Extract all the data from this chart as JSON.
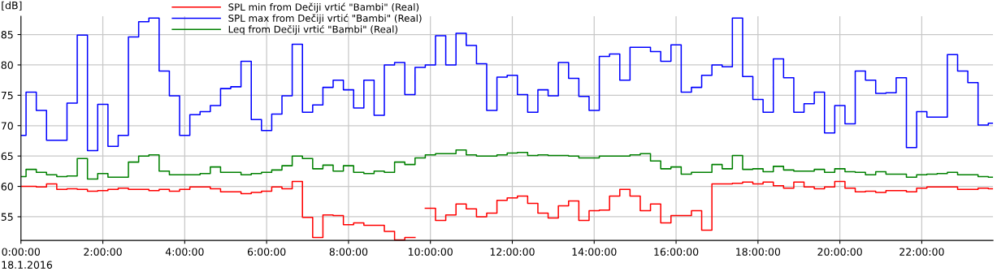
{
  "chart_data": {
    "type": "step",
    "x": [
      0,
      0.125,
      0.375,
      0.625,
      0.875,
      1.125,
      1.375,
      1.625,
      1.875,
      2.125,
      2.375,
      2.625,
      2.875,
      3.125,
      3.375,
      3.625,
      3.875,
      4.125,
      4.375,
      4.625,
      4.875,
      5.125,
      5.375,
      5.625,
      5.875,
      6.125,
      6.375,
      6.625,
      6.875,
      7.125,
      7.375,
      7.625,
      7.875,
      8.125,
      8.375,
      8.625,
      8.875,
      9.125,
      9.375,
      9.625,
      9.875,
      10.125,
      10.375,
      10.625,
      10.875,
      11.125,
      11.375,
      11.625,
      11.875,
      12.125,
      12.375,
      12.625,
      12.875,
      13.125,
      13.375,
      13.625,
      13.875,
      14.125,
      14.375,
      14.625,
      14.875,
      15.125,
      15.375,
      15.625,
      15.875,
      16.125,
      16.375,
      16.625,
      16.875,
      17.125,
      17.375,
      17.625,
      17.875,
      18.125,
      18.375,
      18.625,
      18.875,
      19.125,
      19.375,
      19.625,
      19.875,
      20.125,
      20.375,
      20.625,
      20.875,
      21.125,
      21.375,
      21.625,
      21.875,
      22.125,
      22.375,
      22.625,
      22.875,
      23.125,
      23.375,
      23.625,
      23.74
    ],
    "series": [
      {
        "name": "SPL min from Dečiji vrtić \"Bambi\" (Real)",
        "color": "#ff0000",
        "values": [
          60.0,
          60.0,
          59.9,
          60.4,
          59.5,
          59.6,
          59.5,
          59.2,
          59.3,
          59.5,
          59.7,
          59.5,
          59.5,
          59.3,
          59.5,
          59.2,
          59.5,
          59.9,
          59.9,
          59.6,
          59.1,
          59.1,
          58.8,
          59.0,
          59.2,
          59.9,
          59.6,
          60.8,
          54.9,
          51.6,
          55.3,
          55.2,
          53.7,
          54.0,
          53.6,
          53.6,
          52.6,
          51.2,
          51.6,
          null,
          56.4,
          54.4,
          55.3,
          57.1,
          56.3,
          55.0,
          55.6,
          57.7,
          58.1,
          58.4,
          57.2,
          55.6,
          54.8,
          56.8,
          57.6,
          54.4,
          56.0,
          56.1,
          58.4,
          59.5,
          58.4,
          56.0,
          57.1,
          54.0,
          55.2,
          55.2,
          56.0,
          52.8,
          60.4,
          60.4,
          60.5,
          60.7,
          60.4,
          60.7,
          60.1,
          59.7,
          60.7,
          59.9,
          59.6,
          59.9,
          60.8,
          59.7,
          59.1,
          59.2,
          59.0,
          59.3,
          59.3,
          59.1,
          59.7,
          59.9,
          59.9,
          59.9,
          59.5,
          59.5,
          59.7,
          59.6,
          59.6
        ]
      },
      {
        "name": "SPL max from Dečiji vrtić \"Bambi\" (Real)",
        "color": "#0000ff",
        "values": [
          68.4,
          75.5,
          72.5,
          67.6,
          67.6,
          73.7,
          84.9,
          65.9,
          73.5,
          66.6,
          68.4,
          84.6,
          87.1,
          87.7,
          79.0,
          74.9,
          68.4,
          71.8,
          72.3,
          73.3,
          76.1,
          76.4,
          80.6,
          71.0,
          69.2,
          71.9,
          74.9,
          83.4,
          72.2,
          73.4,
          76.3,
          77.5,
          75.9,
          72.9,
          77.5,
          71.7,
          80.0,
          80.4,
          75.1,
          79.6,
          80.0,
          84.8,
          80.0,
          85.2,
          83.2,
          80.2,
          72.5,
          78.0,
          78.3,
          75.1,
          72.2,
          75.9,
          74.9,
          80.4,
          77.8,
          74.8,
          72.5,
          81.4,
          81.8,
          77.5,
          82.9,
          82.9,
          82.2,
          80.6,
          83.3,
          75.5,
          76.3,
          78.3,
          80.0,
          79.7,
          87.7,
          78.1,
          74.3,
          72.2,
          81.0,
          77.9,
          72.2,
          73.6,
          75.5,
          68.8,
          73.3,
          70.3,
          79.0,
          77.5,
          75.3,
          75.4,
          77.9,
          66.4,
          72.3,
          71.4,
          71.4,
          81.7,
          79.0,
          77.1,
          70.1,
          70.4,
          70.4
        ]
      },
      {
        "name": "Leq from Dečiji vrtić \"Bambi\" (Real)",
        "color": "#008000",
        "values": [
          61.6,
          62.8,
          62.3,
          61.9,
          61.6,
          61.7,
          64.6,
          61.2,
          62.1,
          61.5,
          61.5,
          64.0,
          65.0,
          65.2,
          62.5,
          61.9,
          61.9,
          61.9,
          62.1,
          63.2,
          62.3,
          62.3,
          61.9,
          62.1,
          62.3,
          62.7,
          63.4,
          65.0,
          64.6,
          62.9,
          63.5,
          62.5,
          63.4,
          62.3,
          62.1,
          62.5,
          62.3,
          64.0,
          63.6,
          64.7,
          65.2,
          65.4,
          65.4,
          66.0,
          65.2,
          65.0,
          65.0,
          65.2,
          65.5,
          65.6,
          65.1,
          65.2,
          65.1,
          65.1,
          65.0,
          64.7,
          64.7,
          65.0,
          65.0,
          65.0,
          65.2,
          65.4,
          64.2,
          62.9,
          63.2,
          62.0,
          62.3,
          62.3,
          63.6,
          62.9,
          65.1,
          62.8,
          62.9,
          62.4,
          63.3,
          62.7,
          62.5,
          62.5,
          62.8,
          62.3,
          62.9,
          62.4,
          62.3,
          61.9,
          62.4,
          62.0,
          62.0,
          61.5,
          61.9,
          62.0,
          62.1,
          62.3,
          61.9,
          61.9,
          61.6,
          61.5,
          61.5
        ]
      }
    ],
    "ylabel": "[dB]",
    "xlim": [
      0,
      23.74
    ],
    "xticks": [
      {
        "value": 0,
        "label": "0:00:00"
      },
      {
        "value": 2,
        "label": "2:00:00"
      },
      {
        "value": 4,
        "label": "4:00:00"
      },
      {
        "value": 6,
        "label": "6:00:00"
      },
      {
        "value": 8,
        "label": "8:00:00"
      },
      {
        "value": 10,
        "label": "10:00:00"
      },
      {
        "value": 12,
        "label": "12:00:00"
      },
      {
        "value": 14,
        "label": "14:00:00"
      },
      {
        "value": 16,
        "label": "16:00:00"
      },
      {
        "value": 18,
        "label": "18:00:00"
      },
      {
        "value": 20,
        "label": "20:00:00"
      },
      {
        "value": 22,
        "label": "22:00:00"
      }
    ],
    "ylim": [
      51.1,
      88
    ],
    "yticks": [
      55,
      60,
      65,
      70,
      75,
      80,
      85
    ],
    "grid": true,
    "legend": "top left",
    "annotations": [
      "18.1.2016"
    ]
  }
}
